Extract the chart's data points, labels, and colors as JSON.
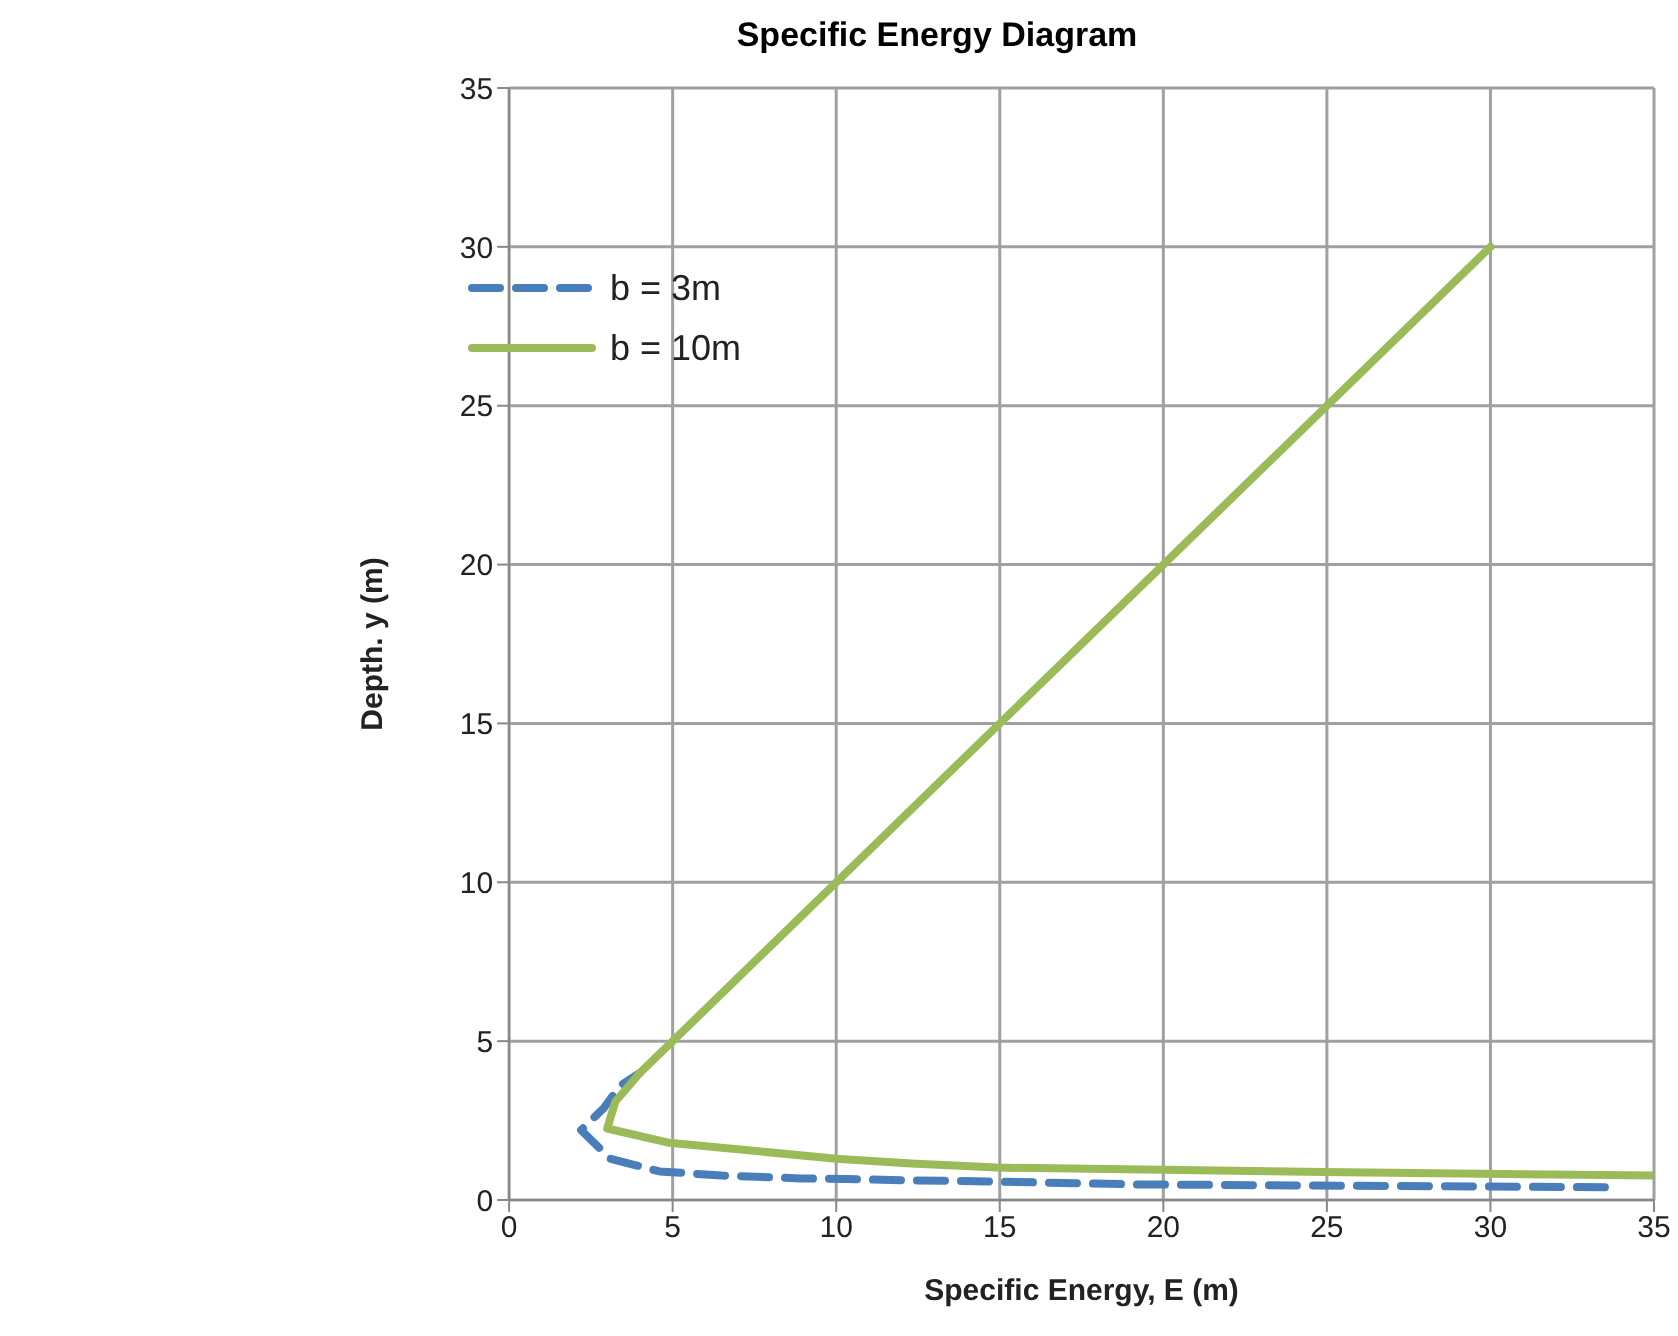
{
  "chart_data": {
    "type": "line",
    "title": "Specific Energy Diagram",
    "xlabel": "Specific Energy, E (m)",
    "ylabel": "Depth. y (m)",
    "xlim": [
      0,
      35
    ],
    "xticks": [
      0,
      5,
      10,
      15,
      20,
      25,
      30,
      35
    ],
    "ylim": [
      0,
      35
    ],
    "yticks": [
      0,
      5,
      10,
      15,
      20,
      25,
      30,
      35
    ],
    "grid": true,
    "legend": "top left",
    "marker": "none",
    "series": [
      {
        "name": "b = 3m",
        "color": "#4a7ebb",
        "line_style": "dashed",
        "x": [
          33.5,
          19.2,
          13.8,
          12.1,
          10.3,
          8.9,
          6.5,
          4.6,
          3.1,
          2.2,
          2.9,
          3.4,
          4
        ],
        "values": [
          0.4,
          0.49,
          0.6,
          0.62,
          0.66,
          0.68,
          0.77,
          0.9,
          1.3,
          2.2,
          2.9,
          3.6,
          4
        ]
      },
      {
        "name": "b = 10m",
        "color": "#9bbb59",
        "line_style": "solid",
        "x": [
          35,
          24.9,
          14.9,
          12.3,
          10,
          4.9,
          3,
          3.25,
          4,
          5,
          10,
          20,
          30
        ],
        "values": [
          0.77,
          0.88,
          1.02,
          1.15,
          1.3,
          1.8,
          2.25,
          3.1,
          4,
          5,
          10,
          20,
          30
        ]
      }
    ]
  }
}
